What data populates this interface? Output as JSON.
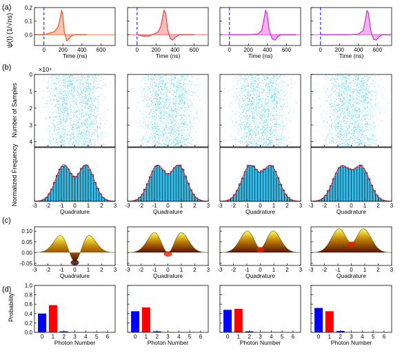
{
  "chart_data": [
    {
      "panel": "(a)",
      "type": "line",
      "ylabel": "ψ(t) (1/√ns)",
      "xlabel": "Time (ns)",
      "xlim": [
        -100,
        750
      ],
      "ylim": [
        -0.08,
        0.2
      ],
      "x_ticks": [
        0,
        200,
        400,
        600
      ],
      "y_ticks": [
        0.0,
        0.1,
        0.2
      ],
      "y_tick_labels": [
        "0.0",
        "0.1",
        "0.2"
      ],
      "dashed_vertical_line_x": 0,
      "series": [
        {
          "color": "#f05a1e",
          "x": [
            -80,
            0,
            60,
            110,
            150,
            170,
            185,
            195,
            215,
            240,
            260,
            280,
            300,
            320,
            360,
            400,
            450
          ],
          "y": [
            0.0,
            0.0,
            0.012,
            0.022,
            0.06,
            0.12,
            0.178,
            0.16,
            0.02,
            -0.045,
            -0.035,
            -0.015,
            -0.005,
            0.0,
            0.0,
            0.0,
            0.0
          ]
        },
        {
          "color": "#f04040",
          "x": [
            0,
            60,
            120,
            180,
            220,
            250,
            270,
            285,
            300,
            325,
            350,
            375,
            400,
            450,
            500,
            550,
            600
          ],
          "y": [
            0.0,
            -0.01,
            -0.01,
            0.005,
            0.02,
            0.06,
            0.13,
            0.18,
            0.16,
            0.03,
            -0.03,
            -0.04,
            -0.02,
            0.0,
            0.0,
            0.0,
            0.0
          ]
        },
        {
          "color": "#e020d8",
          "x": [
            0,
            100,
            200,
            300,
            340,
            360,
            380,
            395,
            420,
            450,
            480,
            510,
            540,
            600,
            700
          ],
          "y": [
            0.0,
            0.0,
            0.0,
            0.005,
            0.03,
            0.1,
            0.178,
            0.16,
            0.03,
            -0.03,
            -0.04,
            -0.015,
            0.0,
            0.0,
            0.0
          ]
        },
        {
          "color": "#cc30d0",
          "x": [
            0,
            100,
            200,
            300,
            400,
            450,
            470,
            490,
            505,
            530,
            560,
            590,
            620,
            650,
            700,
            750
          ],
          "y": [
            0.0,
            0.0,
            0.0,
            0.0,
            0.005,
            0.03,
            0.1,
            0.178,
            0.16,
            0.03,
            -0.035,
            -0.04,
            -0.015,
            0.0,
            0.0,
            0.0
          ]
        }
      ]
    },
    {
      "panel": "(b)",
      "type": "scatter",
      "ylabel": "Number of Samples",
      "y_multiplier": "×10⁴",
      "xlim": [
        -3,
        3
      ],
      "ylim": [
        0,
        4.3
      ],
      "y_ticks": [
        0,
        1,
        2,
        3,
        4
      ],
      "point_color": "#5ad2e8",
      "description_values": {
        "samples_per_panel": 43000
      }
    },
    {
      "panel": "(b)",
      "type": "bar",
      "ylabel": "Normalized Frequency",
      "xlabel": "Quadrature",
      "xlim": [
        -3,
        3
      ],
      "x_ticks": [
        -3,
        -2,
        -1,
        0,
        1,
        2,
        3
      ],
      "bar_color": "#38b8e0",
      "fit_color": "#c81e3c",
      "bin_width": 0.2,
      "series": [
        {
          "photon_probabilities": [
            0.4,
            0.58
          ]
        },
        {
          "photon_probabilities": [
            0.45,
            0.53
          ]
        },
        {
          "photon_probabilities": [
            0.48,
            0.5
          ]
        },
        {
          "photon_probabilities": [
            0.52,
            0.45
          ]
        }
      ]
    },
    {
      "panel": "(c)",
      "type": "area",
      "xlabel": "Quadrature",
      "xlim": [
        -3,
        3
      ],
      "ylim": [
        -0.06,
        0.12
      ],
      "x_ticks": [
        -3,
        -2,
        -1,
        0,
        1,
        2,
        3
      ],
      "y_ticks": [
        -0.05,
        0.0,
        0.05,
        0.1
      ],
      "y_tick_labels": [
        "-0.05",
        "0.00",
        "0.05",
        "0.10"
      ],
      "surface_colors": [
        "#ffff60",
        "#c08000",
        "#581000"
      ],
      "series": [
        {
          "center_value": -0.04
        },
        {
          "center_value": 0.0
        },
        {
          "center_value": 0.02
        },
        {
          "center_value": 0.045
        }
      ]
    },
    {
      "panel": "(d)",
      "type": "bar",
      "ylabel": "Probability",
      "xlabel": "Photon Number",
      "categories": [
        "0",
        "1",
        "2",
        "3",
        "4",
        "5",
        "6"
      ],
      "ylim": [
        0,
        1.0
      ],
      "y_ticks": [
        0.0,
        0.2,
        0.4,
        0.6,
        0.8,
        1.0
      ],
      "y_tick_labels": [
        "0.0",
        "0.2",
        "0.4",
        "0.6",
        "0.8",
        "1.0"
      ],
      "bar_colors": [
        "#0000ff",
        "#ff0000"
      ],
      "series": [
        {
          "values": [
            0.4,
            0.58,
            0.02,
            0.0,
            0.0,
            0.0,
            0.0
          ]
        },
        {
          "values": [
            0.45,
            0.53,
            0.02,
            0.0,
            0.0,
            0.0,
            0.0
          ]
        },
        {
          "values": [
            0.48,
            0.5,
            0.02,
            0.0,
            0.0,
            0.0,
            0.0
          ]
        },
        {
          "values": [
            0.52,
            0.45,
            0.03,
            0.0,
            0.0,
            0.0,
            0.0
          ]
        }
      ]
    }
  ],
  "labels": {
    "panel_a": "(a)",
    "panel_b": "(b)",
    "panel_c": "(c)",
    "panel_d": "(d)",
    "a_ylabel": "ψ(t) (1/√ns)",
    "a_xlabel": "Time (ns)",
    "b_ylabel_top": "Number of Samples",
    "b_multiplier": "×10⁴",
    "b_ylabel_bottom": "Normalized Frequency",
    "b_xlabel": "Quadrature",
    "c_xlabel": "Quadrature",
    "d_ylabel": "Probability",
    "d_xlabel": "Photon Number"
  }
}
